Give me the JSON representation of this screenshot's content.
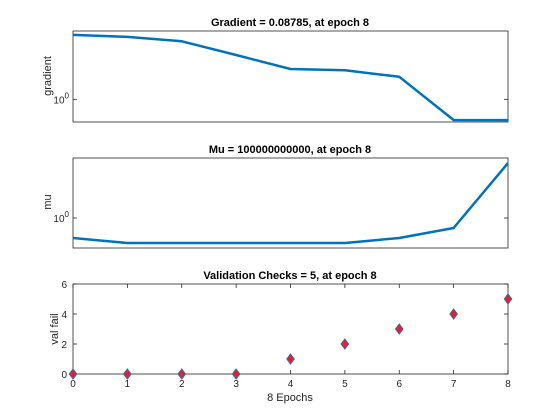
{
  "chart_data": [
    {
      "type": "line",
      "title": "Gradient = 0.08785, at epoch 8",
      "xlabel": "",
      "ylabel": "gradient",
      "yscale": "log",
      "ylim": [
        0.07,
        3000
      ],
      "xlim": [
        0,
        8
      ],
      "ytick_labels": [
        {
          "value": 1,
          "label": "10",
          "exponent": "0"
        }
      ],
      "xtick_labels": [],
      "grid": false,
      "line_color": "#0072BD",
      "series": [
        {
          "x": [
            0,
            1,
            2,
            3,
            4,
            5,
            6,
            7,
            8
          ],
          "y": [
            1900,
            1500,
            900,
            180,
            35,
            30,
            14,
            0.088,
            0.08785
          ]
        }
      ]
    },
    {
      "type": "line",
      "title": "Mu = 100000000000, at epoch 8",
      "xlabel": "",
      "ylabel": "mu",
      "yscale": "log",
      "ylim": [
        1e-06,
        1000000000000.0
      ],
      "xlim": [
        0,
        8
      ],
      "ytick_labels": [
        {
          "value": 1,
          "label": "10",
          "exponent": "0"
        }
      ],
      "xtick_labels": [],
      "grid": false,
      "line_color": "#0072BD",
      "series": [
        {
          "x": [
            0,
            1,
            2,
            3,
            4,
            5,
            6,
            7,
            8
          ],
          "y": [
            0.0001,
            1e-05,
            1e-05,
            1e-05,
            1e-05,
            1e-05,
            0.0001,
            0.01,
            100000000000
          ]
        }
      ]
    },
    {
      "type": "scatter",
      "title": "Validation Checks = 5, at epoch 8",
      "xlabel": "8 Epochs",
      "ylabel": "val fail",
      "yscale": "linear",
      "ylim": [
        0,
        6
      ],
      "xlim": [
        0,
        8
      ],
      "yticks": [
        0,
        2,
        4,
        6
      ],
      "xticks": [
        0,
        1,
        2,
        3,
        4,
        5,
        6,
        7,
        8
      ],
      "grid": false,
      "marker": "diamond",
      "marker_face": "#EE1C25",
      "marker_edge": "#2B6FB3",
      "series": [
        {
          "x": [
            0,
            1,
            2,
            3,
            4,
            5,
            6,
            7,
            8
          ],
          "y": [
            0,
            0,
            0,
            0,
            1,
            2,
            3,
            4,
            5
          ]
        }
      ]
    }
  ]
}
